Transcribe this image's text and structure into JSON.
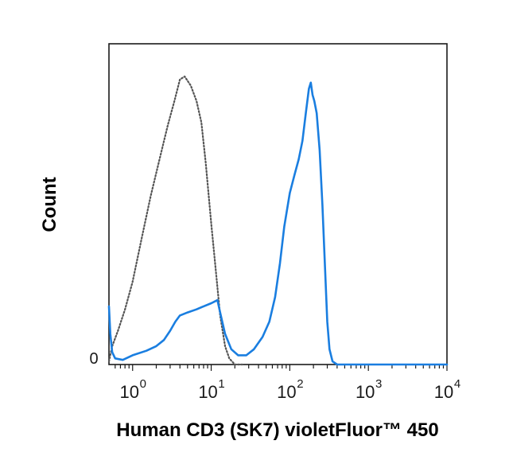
{
  "chart_data": {
    "type": "line",
    "xlabel": "Human CD3 (SK7) violetFluor™ 450",
    "ylabel": "Count",
    "x_scale": "log",
    "xlim": [
      0.5,
      10000
    ],
    "ylim": [
      0,
      100
    ],
    "x_ticks": [
      {
        "base": "10",
        "exp": "0",
        "value": 1
      },
      {
        "base": "10",
        "exp": "1",
        "value": 10
      },
      {
        "base": "10",
        "exp": "2",
        "value": 100
      },
      {
        "base": "10",
        "exp": "3",
        "value": 1000
      },
      {
        "base": "10",
        "exp": "4",
        "value": 10000
      }
    ],
    "y_ticks": [
      {
        "label": "0",
        "value": 0
      }
    ],
    "grid": false,
    "legend": "none",
    "series": [
      {
        "style": "dotted",
        "color": "#555555",
        "points": [
          [
            0.5,
            1
          ],
          [
            0.55,
            6
          ],
          [
            0.65,
            11
          ],
          [
            0.8,
            18
          ],
          [
            1.0,
            27
          ],
          [
            1.3,
            41
          ],
          [
            1.7,
            55
          ],
          [
            2.2,
            67
          ],
          [
            2.8,
            78
          ],
          [
            3.4,
            86
          ],
          [
            4.0,
            93
          ],
          [
            4.6,
            94
          ],
          [
            5.5,
            91
          ],
          [
            6.5,
            86
          ],
          [
            7.5,
            79
          ],
          [
            8.5,
            66
          ],
          [
            10,
            46
          ],
          [
            11.5,
            30
          ],
          [
            13,
            16
          ],
          [
            15,
            6
          ],
          [
            17,
            2
          ],
          [
            20,
            0
          ],
          [
            25,
            0
          ]
        ]
      },
      {
        "style": "solid",
        "color": "#1a7ee0",
        "points": [
          [
            0.5,
            19
          ],
          [
            0.52,
            10
          ],
          [
            0.55,
            4
          ],
          [
            0.6,
            2
          ],
          [
            0.75,
            1.5
          ],
          [
            1.0,
            3
          ],
          [
            1.5,
            4.5
          ],
          [
            2.0,
            6
          ],
          [
            2.5,
            8
          ],
          [
            3.0,
            11
          ],
          [
            3.5,
            14
          ],
          [
            4.0,
            16
          ],
          [
            5.0,
            17
          ],
          [
            6.5,
            18
          ],
          [
            8.0,
            19
          ],
          [
            10,
            20
          ],
          [
            12,
            21
          ],
          [
            13,
            17
          ],
          [
            15,
            10
          ],
          [
            18,
            5
          ],
          [
            22,
            3
          ],
          [
            28,
            3
          ],
          [
            35,
            5
          ],
          [
            45,
            9
          ],
          [
            55,
            14
          ],
          [
            65,
            22
          ],
          [
            75,
            33
          ],
          [
            85,
            45
          ],
          [
            100,
            56
          ],
          [
            115,
            62
          ],
          [
            130,
            67
          ],
          [
            145,
            73
          ],
          [
            160,
            82
          ],
          [
            175,
            90
          ],
          [
            185,
            92
          ],
          [
            195,
            88
          ],
          [
            205,
            86
          ],
          [
            220,
            82
          ],
          [
            240,
            70
          ],
          [
            260,
            52
          ],
          [
            280,
            32
          ],
          [
            300,
            14
          ],
          [
            320,
            5
          ],
          [
            350,
            1
          ],
          [
            400,
            0
          ],
          [
            1000,
            0
          ],
          [
            10000,
            0
          ]
        ]
      }
    ]
  }
}
